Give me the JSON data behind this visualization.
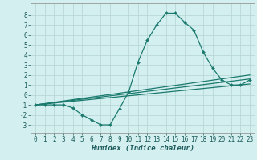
{
  "xlabel": "Humidex (Indice chaleur)",
  "bg_color": "#d4efef",
  "grid_color": "#b8d8d8",
  "line_color": "#1a7a6e",
  "xlim": [
    -0.5,
    23.5
  ],
  "ylim": [
    -3.8,
    9.2
  ],
  "xticks": [
    0,
    1,
    2,
    3,
    4,
    5,
    6,
    7,
    8,
    9,
    10,
    11,
    12,
    13,
    14,
    15,
    16,
    17,
    18,
    19,
    20,
    21,
    22,
    23
  ],
  "yticks": [
    -3,
    -2,
    -1,
    0,
    1,
    2,
    3,
    4,
    5,
    6,
    7,
    8
  ],
  "main_line_x": [
    0,
    1,
    2,
    3,
    4,
    5,
    6,
    7,
    8,
    9,
    10,
    11,
    12,
    13,
    14,
    15,
    16,
    17,
    18,
    19,
    20,
    21,
    22,
    23
  ],
  "main_line_y": [
    -1,
    -1,
    -1,
    -1,
    -1.3,
    -2,
    -2.5,
    -3,
    -3,
    -1.4,
    0.3,
    3.3,
    5.5,
    7,
    8.2,
    8.2,
    7.3,
    6.5,
    4.3,
    2.7,
    1.5,
    1,
    1,
    1.5
  ],
  "line2_x": [
    0,
    23
  ],
  "line2_y": [
    -1,
    1.6
  ],
  "line3_x": [
    0,
    23
  ],
  "line3_y": [
    -1,
    1.1
  ],
  "line4_x": [
    0,
    23
  ],
  "line4_y": [
    -1,
    2.0
  ],
  "tick_fontsize": 5.5,
  "xlabel_fontsize": 6.5
}
